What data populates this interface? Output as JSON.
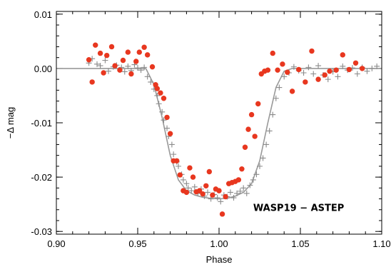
{
  "chart_data": {
    "type": "scatter",
    "title": "",
    "xlabel": "Phase",
    "ylabel": "−Δ mag",
    "xlim": [
      0.9,
      1.1
    ],
    "ylim": [
      -0.0305,
      0.0105
    ],
    "x_ticks": [
      0.9,
      0.95,
      1.0,
      1.05,
      1.1
    ],
    "x_tick_labels": [
      "0.90",
      "0.95",
      "1.00",
      "1.05",
      "1.10"
    ],
    "y_ticks": [
      0.01,
      0.0,
      -0.01,
      -0.02,
      -0.03
    ],
    "y_tick_labels": [
      "0.01",
      "0.00",
      "-0.01",
      "-0.02",
      "-0.03"
    ],
    "grid": false,
    "legend": "none",
    "annotation": "WASP19 − ASTEP",
    "colors": {
      "model": "#999999",
      "plus": "#8a8a8a",
      "dots": "#e8371f"
    },
    "model_curve": {
      "x": [
        0.9,
        0.955,
        0.96,
        0.965,
        0.97,
        0.975,
        0.98,
        0.985,
        0.99,
        0.995,
        1.0,
        1.005,
        1.01,
        1.015,
        1.02,
        1.025,
        1.03,
        1.035,
        1.04,
        1.045,
        1.1
      ],
      "y": [
        0.0,
        0.0,
        -0.003,
        -0.009,
        -0.016,
        -0.0205,
        -0.0225,
        -0.0233,
        -0.0237,
        -0.0239,
        -0.024,
        -0.0239,
        -0.0235,
        -0.0228,
        -0.0212,
        -0.017,
        -0.01,
        -0.0035,
        -0.0005,
        0.0,
        0.0
      ]
    },
    "series": [
      {
        "marker": "plus",
        "x": [
          0.92,
          0.922,
          0.925,
          0.927,
          0.93,
          0.932,
          0.935,
          0.937,
          0.94,
          0.942,
          0.944,
          0.946,
          0.948,
          0.95,
          0.952,
          0.954,
          0.956,
          0.958,
          0.96,
          0.962,
          0.963,
          0.965,
          0.966,
          0.968,
          0.969,
          0.971,
          0.972,
          0.974,
          0.975,
          0.977,
          0.978,
          0.98,
          0.981,
          0.983,
          0.985,
          0.987,
          0.989,
          0.991,
          0.993,
          0.995,
          0.997,
          0.999,
          1.001,
          1.003,
          1.005,
          1.007,
          1.009,
          1.011,
          1.013,
          1.015,
          1.017,
          1.019,
          1.021,
          1.023,
          1.025,
          1.027,
          1.029,
          1.031,
          1.033,
          1.035,
          1.037,
          1.04,
          1.043,
          1.046,
          1.049,
          1.052,
          1.055,
          1.058,
          1.061,
          1.064,
          1.067,
          1.07,
          1.073,
          1.076,
          1.079,
          1.082,
          1.085,
          1.088,
          1.091,
          1.094,
          1.097
        ],
        "y": [
          0.001,
          0.0018,
          0.0008,
          0.0005,
          0.0015,
          -0.0005,
          0.0003,
          0.0006,
          0.0002,
          -0.0006,
          0.0004,
          -0.0004,
          0.0007,
          0.0001,
          -0.0003,
          0.0002,
          -0.0015,
          -0.0025,
          -0.0038,
          -0.005,
          -0.0065,
          -0.008,
          -0.0095,
          -0.011,
          -0.0125,
          -0.014,
          -0.0158,
          -0.0172,
          -0.018,
          -0.0195,
          -0.0205,
          -0.0212,
          -0.022,
          -0.0225,
          -0.0218,
          -0.023,
          -0.0222,
          -0.0235,
          -0.0228,
          -0.024,
          -0.0232,
          -0.0238,
          -0.0245,
          -0.0233,
          -0.0236,
          -0.0228,
          -0.0238,
          -0.023,
          -0.0226,
          -0.022,
          -0.023,
          -0.0215,
          -0.0205,
          -0.0195,
          -0.018,
          -0.0165,
          -0.014,
          -0.0115,
          -0.0085,
          -0.0055,
          -0.0035,
          -0.0015,
          -0.0008,
          0.0003,
          -0.0004,
          -0.0008,
          0.0002,
          -0.001,
          0.0005,
          -0.0012,
          -0.002,
          -0.0006,
          -0.0015,
          0.0004,
          -0.0003,
          0.0001,
          -0.001,
          0.0002,
          -0.0005,
          0.0,
          0.0004
        ]
      },
      {
        "marker": "dot",
        "x": [
          0.92,
          0.922,
          0.924,
          0.927,
          0.929,
          0.931,
          0.934,
          0.936,
          0.939,
          0.941,
          0.944,
          0.946,
          0.949,
          0.951,
          0.954,
          0.956,
          0.959,
          0.961,
          0.962,
          0.964,
          0.966,
          0.968,
          0.97,
          0.972,
          0.974,
          0.976,
          0.978,
          0.98,
          0.982,
          0.984,
          0.986,
          0.988,
          0.99,
          0.992,
          0.994,
          0.996,
          0.998,
          1.0,
          1.002,
          1.004,
          1.006,
          1.008,
          1.01,
          1.012,
          1.014,
          1.016,
          1.018,
          1.02,
          1.022,
          1.024,
          1.026,
          1.028,
          1.03,
          1.033,
          1.036,
          1.039,
          1.042,
          1.045,
          1.049,
          1.053,
          1.057,
          1.061,
          1.065,
          1.068,
          1.072,
          1.076,
          1.08,
          1.084,
          1.088
        ],
        "y": [
          0.0016,
          -0.0025,
          0.0043,
          0.0028,
          -0.0008,
          0.0024,
          0.004,
          0.0005,
          -0.0003,
          0.0015,
          0.003,
          -0.001,
          0.0013,
          0.003,
          0.0039,
          0.0025,
          0.0003,
          -0.003,
          -0.0037,
          -0.0045,
          -0.0055,
          -0.009,
          -0.012,
          -0.017,
          -0.017,
          -0.0196,
          -0.0225,
          -0.0228,
          -0.0183,
          -0.02,
          -0.0227,
          -0.0225,
          -0.0231,
          -0.0216,
          -0.019,
          -0.0233,
          -0.0222,
          -0.0225,
          -0.0268,
          -0.0236,
          -0.0212,
          -0.021,
          -0.0208,
          -0.0205,
          -0.0185,
          -0.0145,
          -0.0112,
          -0.0085,
          -0.0125,
          -0.0065,
          -0.001,
          -0.0005,
          -0.0003,
          0.0028,
          -0.0003,
          0.0008,
          -0.0007,
          -0.0042,
          -0.0002,
          -0.0025,
          0.0032,
          -0.002,
          -0.0012,
          -0.0005,
          -0.0003,
          0.0025,
          -0.0002,
          0.001,
          0.0
        ]
      }
    ]
  }
}
